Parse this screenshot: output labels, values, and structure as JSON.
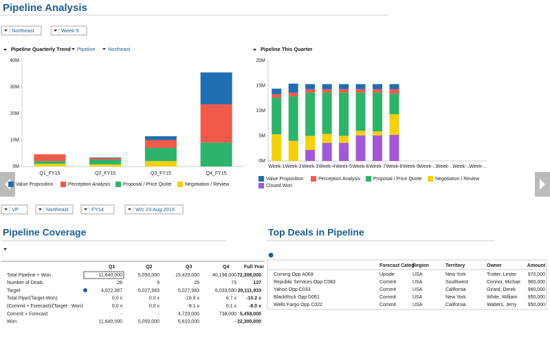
{
  "header": {
    "title": "Pipeline Analysis",
    "filters": [
      "Northeast",
      "Week-5"
    ]
  },
  "chart_data": [
    {
      "type": "bar",
      "stacked": true,
      "title": "Pipeline Quarterly Trend",
      "filters": [
        "Pipeline",
        "Northeast"
      ],
      "categories": [
        "Q1_FY15",
        "Q2_FY15",
        "Q3_FY15",
        "Q4_FY15"
      ],
      "series": [
        {
          "name": "Value Proposition",
          "color": "#1f6fb2",
          "values": [
            0,
            0.2,
            1.4,
            12
          ]
        },
        {
          "name": "Perception Analysis",
          "color": "#f05a4a",
          "values": [
            2.6,
            0.6,
            3.0,
            14.5
          ]
        },
        {
          "name": "Proposal / Price Quote",
          "color": "#2db36a",
          "values": [
            1.0,
            1.8,
            5.0,
            9
          ]
        },
        {
          "name": "Negotiation / Review",
          "color": "#f5d10a",
          "values": [
            1.0,
            0.8,
            2.0,
            0
          ]
        }
      ],
      "ylim": [
        0,
        40
      ],
      "yticks": [
        {
          "value": 0,
          "label": "0M"
        },
        {
          "value": 10,
          "label": "10M"
        },
        {
          "value": 20,
          "label": "20M"
        },
        {
          "value": 30,
          "label": "30M"
        },
        {
          "value": 40,
          "label": "40M"
        }
      ],
      "grid": false
    },
    {
      "type": "bar",
      "stacked": true,
      "title": "Pipeline This Quarter",
      "categories": [
        "Week-1",
        "Week-2",
        "Week-3",
        "Week-4",
        "Week-5",
        "Week-6",
        "Week-7",
        "Week-8",
        "Week-9",
        "Week-...",
        "Week-...",
        "Week-...",
        "Week-..."
      ],
      "series": [
        {
          "name": "Value Proposition",
          "color": "#1f6fb2",
          "values": [
            1.1,
            1.8,
            1.0,
            1.0,
            1.0,
            1.0,
            1.0,
            1.0,
            null,
            null,
            null,
            null,
            null
          ]
        },
        {
          "name": "Perception Analysis",
          "color": "#f05a4a",
          "values": [
            0.7,
            0.7,
            0.7,
            0.7,
            0.7,
            0.7,
            0.7,
            0.9,
            null,
            null,
            null,
            null,
            null
          ]
        },
        {
          "name": "Proposal / Price Quote",
          "color": "#2db36a",
          "values": [
            7.3,
            8.9,
            8.6,
            8.2,
            8.6,
            7.6,
            7.7,
            4.1,
            null,
            null,
            null,
            null,
            null
          ]
        },
        {
          "name": "Negotiation / Review",
          "color": "#f5d10a",
          "values": [
            5.3,
            4.0,
            2.8,
            1.8,
            1.4,
            0.9,
            0.8,
            4.1,
            null,
            null,
            null,
            null,
            null
          ]
        },
        {
          "name": "Closed Won",
          "color": "#a259d9",
          "values": [
            0,
            0,
            2.2,
            3.6,
            3.6,
            5.1,
            5.1,
            5.2,
            null,
            null,
            null,
            null,
            null
          ]
        }
      ],
      "ylim": [
        0,
        20
      ],
      "yticks": [
        {
          "value": 0,
          "label": "0M"
        },
        {
          "value": 5,
          "label": "5M"
        },
        {
          "value": 10,
          "label": "10M"
        },
        {
          "value": 15,
          "label": "15M"
        },
        {
          "value": 20,
          "label": "20M"
        }
      ],
      "grid": false
    }
  ],
  "filters": [
    "VP",
    "Northeast",
    "FY14",
    "W/c 23 Aug 2015"
  ],
  "coverage": {
    "title": "Pipeline Coverage",
    "columns": [
      "Q1",
      "Q2",
      "Q3",
      "Q4",
      "Full Year"
    ],
    "rows": [
      [
        "Total Pipeline + Won",
        "11,640,000",
        "5,050,000",
        "15,420,000",
        "40,198,000",
        "72,308,000"
      ],
      [
        "Number of Deals",
        "26",
        "9",
        "29",
        "73",
        "137"
      ],
      [
        "Target",
        "4,022,387",
        "5,027,983",
        "5,027,983",
        "6,033,580",
        "20,111,933"
      ],
      [
        "Total Pipe/(Target-Won)",
        "0.0 x",
        "0.0 x",
        "-16.9 x",
        "6.7 x",
        "-10.2 x"
      ],
      [
        "(Commit + Forecast)/(Target - Won)",
        "0.0 x",
        "0.0 x",
        "-8.1 x",
        "0.1 x",
        "-8.0 x"
      ],
      [
        "Commit + Forecast",
        "-",
        "-",
        "4,720,000",
        "738,000",
        "5,458,000"
      ],
      [
        "Won",
        "11,640,000",
        "5,050,000",
        "5,610,000",
        "-",
        "22,300,000"
      ]
    ]
  },
  "deals": {
    "title": "Top Deals in Pipeline",
    "columns": [
      "Forecast Categ",
      "Region",
      "Territory",
      "Owner",
      "Amount"
    ],
    "rows": [
      [
        "Corning Opp A069",
        "Upside",
        "USA",
        "New York",
        "Trotter, Lester",
        "970,000"
      ],
      [
        "Republic Services Opp C083",
        "Commit",
        "USA",
        "Southwest",
        "Connor, Michae",
        "960,000"
      ],
      [
        "Yahoo Opp C033",
        "Commit",
        "USA",
        "California",
        "Girard, Derek",
        "960,000"
      ],
      [
        "BlackRock Opp D061",
        "Commit",
        "USA",
        "New York",
        "White, William",
        "950,000"
      ],
      [
        "Wells Fargo Opp C022",
        "Commit",
        "USA",
        "California",
        "Watters, Jerry",
        "950,000"
      ]
    ]
  }
}
